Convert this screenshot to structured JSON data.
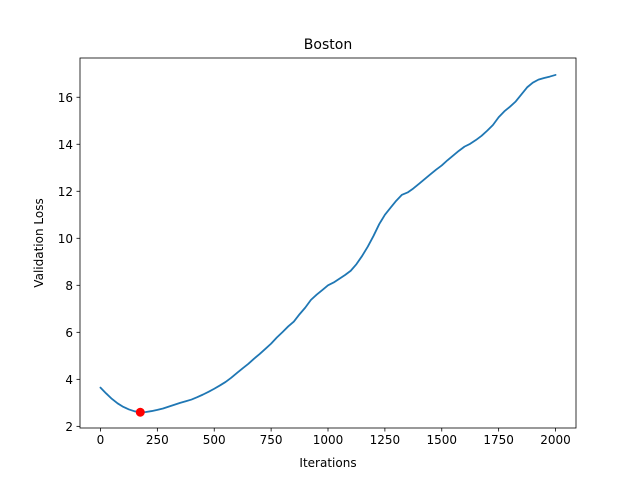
{
  "chart_data": {
    "type": "line",
    "title": "Boston",
    "xlabel": "Iterations",
    "ylabel": "Validation Loss",
    "xlim": [
      -90,
      2090
    ],
    "ylim": [
      1.93,
      17.67
    ],
    "xticks": [
      0,
      250,
      500,
      750,
      1000,
      1250,
      1500,
      1750,
      2000
    ],
    "yticks": [
      2,
      4,
      6,
      8,
      10,
      12,
      14,
      16
    ],
    "grid": false,
    "series": [
      {
        "color": "#1f77b4",
        "x": [
          0,
          25,
          50,
          75,
          100,
          125,
          150,
          175,
          200,
          225,
          250,
          275,
          300,
          325,
          350,
          375,
          400,
          425,
          450,
          475,
          500,
          525,
          550,
          575,
          600,
          625,
          650,
          675,
          700,
          725,
          750,
          775,
          800,
          825,
          850,
          875,
          900,
          925,
          950,
          975,
          1000,
          1025,
          1050,
          1075,
          1100,
          1125,
          1150,
          1175,
          1200,
          1225,
          1250,
          1275,
          1300,
          1325,
          1350,
          1375,
          1400,
          1425,
          1450,
          1475,
          1500,
          1525,
          1550,
          1575,
          1600,
          1625,
          1650,
          1675,
          1700,
          1725,
          1750,
          1775,
          1800,
          1825,
          1850,
          1875,
          1900,
          1925,
          1950,
          1975,
          2000
        ],
        "y": [
          3.65,
          3.4,
          3.17,
          2.98,
          2.83,
          2.72,
          2.64,
          2.6,
          2.61,
          2.65,
          2.7,
          2.76,
          2.84,
          2.92,
          3.0,
          3.07,
          3.14,
          3.24,
          3.35,
          3.47,
          3.6,
          3.74,
          3.89,
          4.07,
          4.27,
          4.47,
          4.66,
          4.88,
          5.08,
          5.3,
          5.52,
          5.78,
          6.01,
          6.25,
          6.46,
          6.77,
          7.05,
          7.38,
          7.6,
          7.8,
          8.0,
          8.12,
          8.28,
          8.44,
          8.62,
          8.9,
          9.25,
          9.65,
          10.1,
          10.6,
          11.0,
          11.3,
          11.6,
          11.85,
          11.95,
          12.12,
          12.32,
          12.52,
          12.72,
          12.92,
          13.1,
          13.32,
          13.52,
          13.72,
          13.9,
          14.02,
          14.18,
          14.36,
          14.58,
          14.82,
          15.15,
          15.4,
          15.6,
          15.82,
          16.12,
          16.42,
          16.62,
          16.75,
          16.82,
          16.88,
          16.95
        ]
      }
    ],
    "highlight_point": {
      "x": 175,
      "y": 2.6,
      "color": "#ff0000"
    }
  }
}
